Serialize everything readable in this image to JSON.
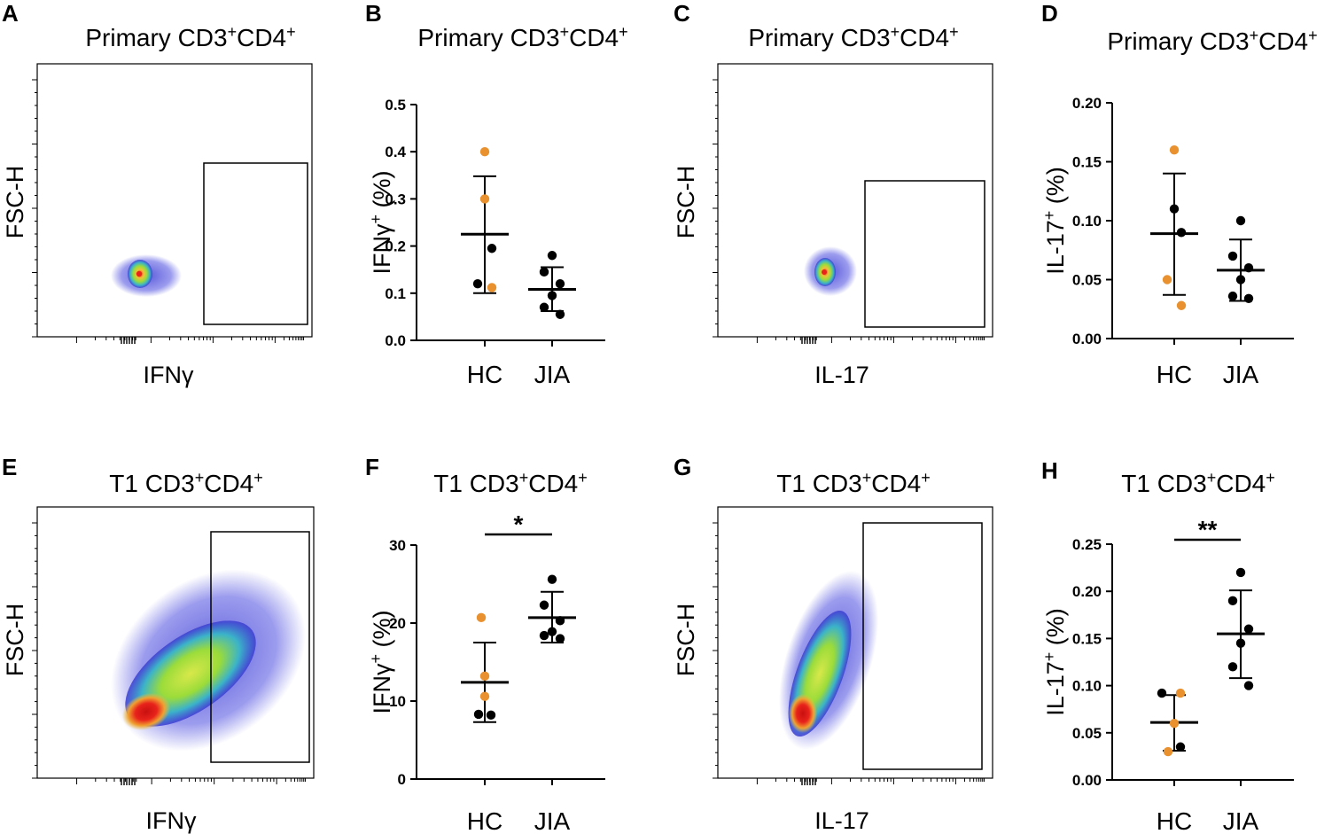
{
  "colors": {
    "hc_orange": "#e8912e",
    "jia_black": "#000000",
    "density_low": "#3b3bd1",
    "density_mid": "#9bdc3a",
    "density_high": "#e8231b"
  },
  "chart_data": [
    {
      "letter": "A",
      "type": "scatter",
      "title": "Primary CD3",
      "title_sup1": "+",
      "title_mid": "CD4",
      "title_sup2": "+",
      "xlabel": "IFNγ",
      "ylabel": "FSC-H",
      "description": "flow cytometry density plot; gated population in rectangle"
    },
    {
      "letter": "B",
      "type": "scatter",
      "title": "Primary CD3",
      "title_sup1": "+",
      "title_mid": "CD4",
      "title_sup2": "+",
      "ylabel": "IFNγ",
      "ylabel_sup": "+",
      "ylabel_unit": " (%)",
      "ylim": [
        0,
        0.5
      ],
      "yticks": [
        "0.0",
        "0.1",
        "0.2",
        "0.3",
        "0.4",
        "0.5"
      ],
      "categories": [
        "HC",
        "JIA"
      ],
      "groups": [
        {
          "name": "HC",
          "mean": 0.225,
          "sd_low": 0.1,
          "sd_high": 0.348,
          "points": [
            {
              "v": 0.4,
              "c": "orange"
            },
            {
              "v": 0.3,
              "c": "orange"
            },
            {
              "v": 0.195,
              "c": "black"
            },
            {
              "v": 0.12,
              "c": "black"
            },
            {
              "v": 0.112,
              "c": "orange"
            }
          ]
        },
        {
          "name": "JIA",
          "mean": 0.108,
          "sd_low": 0.062,
          "sd_high": 0.155,
          "points": [
            {
              "v": 0.18,
              "c": "black"
            },
            {
              "v": 0.145,
              "c": "black"
            },
            {
              "v": 0.12,
              "c": "black"
            },
            {
              "v": 0.095,
              "c": "black"
            },
            {
              "v": 0.07,
              "c": "black"
            },
            {
              "v": 0.055,
              "c": "black"
            }
          ]
        }
      ]
    },
    {
      "letter": "C",
      "type": "scatter",
      "title": "Primary CD3",
      "title_sup1": "+",
      "title_mid": "CD4",
      "title_sup2": "+",
      "xlabel": "IL-17",
      "ylabel": "FSC-H",
      "description": "flow cytometry density plot; gated population in rectangle"
    },
    {
      "letter": "D",
      "type": "scatter",
      "title": "Primary CD3",
      "title_sup1": "+",
      "title_mid": "CD4",
      "title_sup2": "+",
      "ylabel": "IL-17",
      "ylabel_sup": "+",
      "ylabel_unit": " (%)",
      "ylim": [
        0,
        0.2
      ],
      "yticks": [
        "0.00",
        "0.05",
        "0.10",
        "0.15",
        "0.20"
      ],
      "categories": [
        "HC",
        "JIA"
      ],
      "groups": [
        {
          "name": "HC",
          "mean": 0.089,
          "sd_low": 0.037,
          "sd_high": 0.14,
          "points": [
            {
              "v": 0.16,
              "c": "orange"
            },
            {
              "v": 0.11,
              "c": "black"
            },
            {
              "v": 0.09,
              "c": "black"
            },
            {
              "v": 0.05,
              "c": "orange"
            },
            {
              "v": 0.028,
              "c": "orange"
            }
          ]
        },
        {
          "name": "JIA",
          "mean": 0.058,
          "sd_low": 0.032,
          "sd_high": 0.084,
          "points": [
            {
              "v": 0.1,
              "c": "black"
            },
            {
              "v": 0.07,
              "c": "black"
            },
            {
              "v": 0.06,
              "c": "black"
            },
            {
              "v": 0.05,
              "c": "black"
            },
            {
              "v": 0.036,
              "c": "black"
            },
            {
              "v": 0.034,
              "c": "black"
            }
          ]
        }
      ]
    },
    {
      "letter": "E",
      "type": "scatter",
      "title": "T1 CD3",
      "title_sup1": "+",
      "title_mid": "CD4",
      "title_sup2": "+",
      "xlabel": "IFNγ",
      "ylabel": "FSC-H",
      "description": "flow cytometry density plot; gated population in rectangle"
    },
    {
      "letter": "F",
      "type": "scatter",
      "title": "T1 CD3",
      "title_sup1": "+",
      "title_mid": "CD4",
      "title_sup2": "+",
      "ylabel": "IFNγ",
      "ylabel_sup": "+",
      "ylabel_unit": " (%)",
      "ylim": [
        0,
        30
      ],
      "yticks": [
        "0",
        "10",
        "20",
        "30"
      ],
      "categories": [
        "HC",
        "JIA"
      ],
      "significance": "*",
      "groups": [
        {
          "name": "HC",
          "mean": 12.4,
          "sd_low": 7.3,
          "sd_high": 17.5,
          "points": [
            {
              "v": 20.7,
              "c": "orange"
            },
            {
              "v": 13.2,
              "c": "orange"
            },
            {
              "v": 10.6,
              "c": "orange"
            },
            {
              "v": 8.3,
              "c": "black"
            },
            {
              "v": 8.2,
              "c": "black"
            }
          ]
        },
        {
          "name": "JIA",
          "mean": 20.7,
          "sd_low": 17.5,
          "sd_high": 24.0,
          "points": [
            {
              "v": 25.6,
              "c": "black"
            },
            {
              "v": 22.3,
              "c": "black"
            },
            {
              "v": 20.3,
              "c": "black"
            },
            {
              "v": 18.9,
              "c": "black"
            },
            {
              "v": 18.4,
              "c": "black"
            },
            {
              "v": 18.0,
              "c": "black"
            }
          ]
        }
      ]
    },
    {
      "letter": "G",
      "type": "scatter",
      "title": "T1 CD3",
      "title_sup1": "+",
      "title_mid": "CD4",
      "title_sup2": "+",
      "xlabel": "IL-17",
      "ylabel": "FSC-H",
      "description": "flow cytometry density plot; gated population in rectangle"
    },
    {
      "letter": "H",
      "type": "scatter",
      "title": "T1 CD3",
      "title_sup1": "+",
      "title_mid": "CD4",
      "title_sup2": "+",
      "ylabel": "IL-17",
      "ylabel_sup": "+",
      "ylabel_unit": " (%)",
      "ylim": [
        0,
        0.25
      ],
      "yticks": [
        "0.00",
        "0.05",
        "0.10",
        "0.15",
        "0.20",
        "0.25"
      ],
      "categories": [
        "HC",
        "JIA"
      ],
      "significance": "**",
      "groups": [
        {
          "name": "HC",
          "mean": 0.061,
          "sd_low": 0.031,
          "sd_high": 0.09,
          "points": [
            {
              "v": 0.092,
              "c": "black"
            },
            {
              "v": 0.092,
              "c": "orange"
            },
            {
              "v": 0.06,
              "c": "orange"
            },
            {
              "v": 0.035,
              "c": "black"
            },
            {
              "v": 0.03,
              "c": "orange"
            }
          ]
        },
        {
          "name": "JIA",
          "mean": 0.155,
          "sd_low": 0.108,
          "sd_high": 0.201,
          "points": [
            {
              "v": 0.22,
              "c": "black"
            },
            {
              "v": 0.19,
              "c": "black"
            },
            {
              "v": 0.16,
              "c": "black"
            },
            {
              "v": 0.145,
              "c": "black"
            },
            {
              "v": 0.12,
              "c": "black"
            },
            {
              "v": 0.1,
              "c": "black"
            }
          ]
        }
      ]
    }
  ]
}
